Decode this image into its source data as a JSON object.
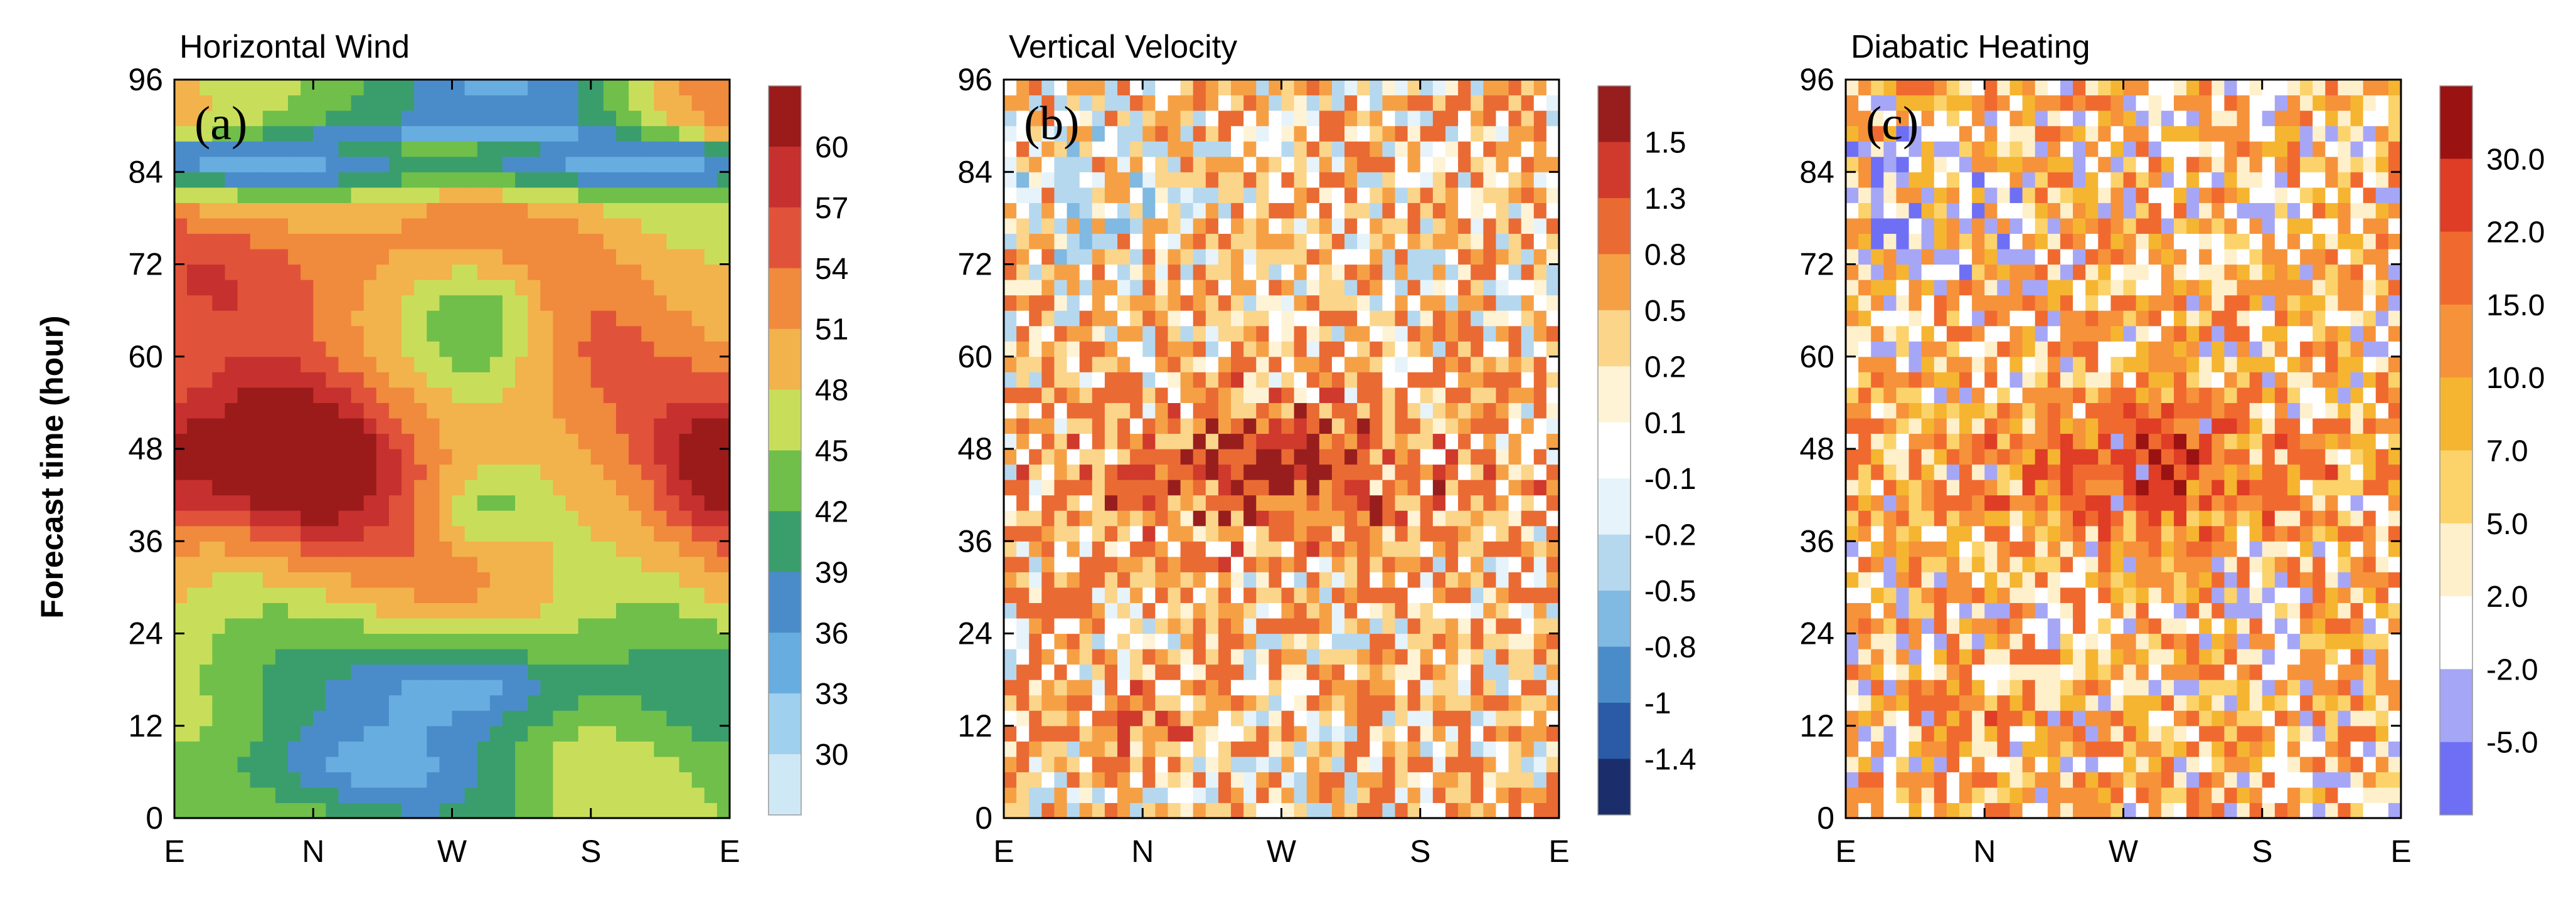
{
  "figure": {
    "ylabel": "Forecast time (hour)"
  },
  "chart_data": [
    {
      "type": "heatmap",
      "panel_letter": "(a)",
      "title": "Horizontal Wind",
      "xlabel": "",
      "ylabel": "Forecast time (hour)",
      "x_ticks": [
        "E",
        "N",
        "W",
        "S",
        "E"
      ],
      "y_ticks": [
        0,
        12,
        24,
        36,
        48,
        60,
        72,
        84,
        96
      ],
      "ylim": [
        0,
        96
      ],
      "colorbar": {
        "levels": [
          "30",
          "33",
          "36",
          "39",
          "42",
          "45",
          "48",
          "51",
          "54",
          "57",
          "60"
        ],
        "colors": [
          "#cfe8f5",
          "#9fd0ee",
          "#67ade0",
          "#4a8cca",
          "#3a9e6c",
          "#6fbf4a",
          "#c8de5a",
          "#f2b24c",
          "#f08a3c",
          "#e0533a",
          "#c6302e",
          "#9b1b1b"
        ]
      },
      "field": "wind",
      "vmin": 29,
      "vmax": 64
    },
    {
      "type": "heatmap",
      "panel_letter": "(b)",
      "title": "Vertical Velocity",
      "xlabel": "",
      "ylabel": "",
      "x_ticks": [
        "E",
        "N",
        "W",
        "S",
        "E"
      ],
      "y_ticks": [
        0,
        12,
        24,
        36,
        48,
        60,
        72,
        84,
        96
      ],
      "ylim": [
        0,
        96
      ],
      "colorbar": {
        "levels": [
          "-1.4",
          "-1",
          "-0.8",
          "-0.5",
          "-0.2",
          "-0.1",
          "0.1",
          "0.2",
          "0.5",
          "0.8",
          "1.3",
          "1.5"
        ],
        "colors": [
          "#1b2e6b",
          "#2b5aa6",
          "#4a8cca",
          "#80b9e2",
          "#b5d8ef",
          "#e6f3fa",
          "#ffffff",
          "#fff3d6",
          "#fbd58a",
          "#f6a045",
          "#ea6a33",
          "#cf3a2c",
          "#981e1e"
        ]
      },
      "field": "vv",
      "vmin": -1.6,
      "vmax": 1.9
    },
    {
      "type": "heatmap",
      "panel_letter": "(c)",
      "title": "Diabatic Heating",
      "xlabel": "",
      "ylabel": "",
      "x_ticks": [
        "E",
        "N",
        "W",
        "S",
        "E"
      ],
      "y_ticks": [
        0,
        12,
        24,
        36,
        48,
        60,
        72,
        84,
        96
      ],
      "ylim": [
        0,
        96
      ],
      "colorbar": {
        "levels": [
          "-5.0",
          "-2.0",
          "2.0",
          "5.0",
          "7.0",
          "10.0",
          "15.0",
          "22.0",
          "30.0"
        ],
        "colors": [
          "#6f6ff5",
          "#a6a6f7",
          "#ffffff",
          "#fff0cc",
          "#fbd36a",
          "#f5b530",
          "#f6923a",
          "#f06a30",
          "#df3d25",
          "#9b1212"
        ]
      },
      "field": "heat",
      "vmin": -8,
      "vmax": 36
    }
  ]
}
